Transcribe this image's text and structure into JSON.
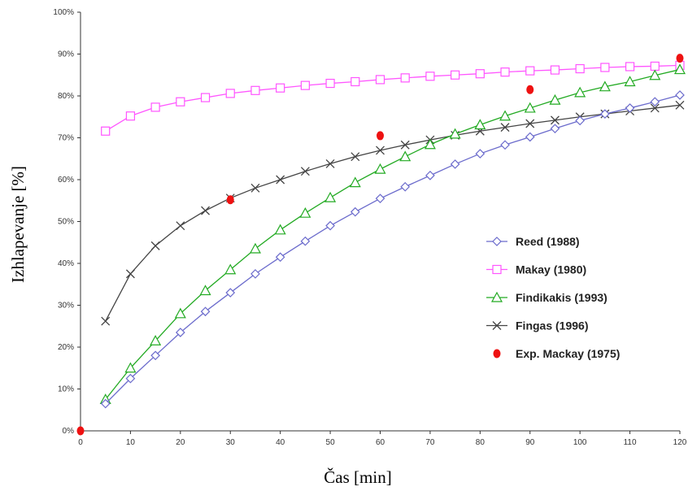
{
  "chart_data": {
    "type": "line",
    "title": "",
    "xlabel": "Čas [min]",
    "ylabel": "Izhlapevanje [%]",
    "xlim": [
      0,
      120
    ],
    "ylim": [
      0,
      100
    ],
    "x_ticks": [
      "0",
      "10",
      "20",
      "30",
      "40",
      "50",
      "60",
      "70",
      "80",
      "90",
      "100",
      "110",
      "120"
    ],
    "y_ticks": [
      "0%",
      "10%",
      "20%",
      "30%",
      "40%",
      "50%",
      "60%",
      "70%",
      "80%",
      "90%",
      "100%"
    ],
    "grid": false,
    "legend_position": "center-right",
    "series": [
      {
        "name": "Reed (1988)",
        "marker": "diamond",
        "color": "#6b6bcc",
        "x": [
          5,
          10,
          15,
          20,
          25,
          30,
          35,
          40,
          45,
          50,
          55,
          60,
          65,
          70,
          75,
          80,
          85,
          90,
          95,
          100,
          105,
          110,
          115,
          120
        ],
        "values": [
          6.5,
          12.5,
          18,
          23.5,
          28.5,
          33,
          37.5,
          41.5,
          45.3,
          49,
          52.3,
          55.5,
          58.3,
          61,
          63.7,
          66.2,
          68.3,
          70.2,
          72.2,
          74.1,
          75.7,
          77.1,
          78.6,
          80.2
        ]
      },
      {
        "name": "Makay (1980)",
        "marker": "square",
        "color": "#ff55ff",
        "x": [
          5,
          10,
          15,
          20,
          25,
          30,
          35,
          40,
          45,
          50,
          55,
          60,
          65,
          70,
          75,
          80,
          85,
          90,
          95,
          100,
          105,
          110,
          115,
          120
        ],
        "values": [
          71.6,
          75.2,
          77.3,
          78.6,
          79.6,
          80.6,
          81.3,
          81.9,
          82.5,
          83,
          83.4,
          83.9,
          84.3,
          84.7,
          85,
          85.3,
          85.7,
          86,
          86.2,
          86.5,
          86.8,
          87,
          87.1,
          87.3
        ]
      },
      {
        "name": "Findikakis (1993)",
        "marker": "triangle",
        "color": "#22aa22",
        "x": [
          5,
          10,
          15,
          20,
          25,
          30,
          35,
          40,
          45,
          50,
          55,
          60,
          65,
          70,
          75,
          80,
          85,
          90,
          95,
          100,
          105,
          110,
          115,
          120
        ],
        "values": [
          7.5,
          15,
          21.5,
          28,
          33.5,
          38.5,
          43.5,
          48,
          52,
          55.7,
          59.3,
          62.5,
          65.5,
          68.4,
          70.9,
          73.1,
          75.2,
          77.1,
          79,
          80.8,
          82.2,
          83.4,
          84.9,
          86.3
        ]
      },
      {
        "name": "Fingas (1996)",
        "marker": "cross",
        "color": "#444444",
        "x": [
          5,
          10,
          15,
          20,
          25,
          30,
          35,
          40,
          45,
          50,
          55,
          60,
          65,
          70,
          75,
          80,
          85,
          90,
          95,
          100,
          105,
          110,
          115,
          120
        ],
        "values": [
          26.2,
          37.5,
          44.2,
          49,
          52.6,
          55.6,
          58,
          60,
          62,
          63.8,
          65.5,
          67,
          68.3,
          69.5,
          70.6,
          71.6,
          72.5,
          73.4,
          74.2,
          75,
          75.7,
          76.4,
          77.1,
          77.8
        ]
      },
      {
        "name": "Exp. Mackay (1975)",
        "marker": "dot",
        "color": "#ee1111",
        "x": [
          0,
          30,
          60,
          90,
          120
        ],
        "values": [
          0,
          55.2,
          70.5,
          81.5,
          89
        ]
      }
    ]
  }
}
